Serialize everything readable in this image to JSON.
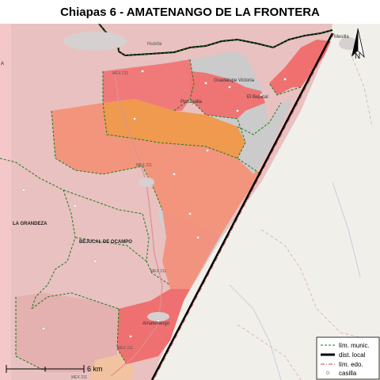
{
  "title": "Chiapas 6 - AMATENANGO DE LA FRONTERA",
  "labels": {
    "huixtla_top": "Huixtla",
    "huehuetan": "Huixtla",
    "guadalupe": "Guadalupe Victoria",
    "piscaycalla": "Piscayalla",
    "el_bejucal": "El Bejucal",
    "la_grandeza": "LA GRANDEZA",
    "bejucal_de_ocampo": "BEJUCAL DE OCAMPO",
    "amatenango": "Amatenango",
    "mesilla": "Mesilla",
    "west_a": "A",
    "west_b": "B"
  },
  "roads": {
    "r1": "MEX 211",
    "r2": "MEX 211",
    "r3": "MEX 211",
    "r4": "MEX 211",
    "r5": "MEX 211"
  },
  "scale": {
    "label": "6 km"
  },
  "north": "N",
  "legend": {
    "items": [
      {
        "label": "lím. munic.",
        "style": "dashed-green"
      },
      {
        "label": "dist. local",
        "style": "thick-black"
      },
      {
        "label": "lím. edo.",
        "style": "dashdot-red"
      },
      {
        "label": "casilla",
        "style": "dot"
      }
    ]
  },
  "colors": {
    "light_pink": "#e9b4b4",
    "pink_bright": "#f07a7a",
    "salmon": "#f59a7c",
    "orange": "#ef9a4f",
    "gray": "#c9c9c9",
    "guatemala": "#f1efe9",
    "muni_line": "#1a7a1a"
  }
}
